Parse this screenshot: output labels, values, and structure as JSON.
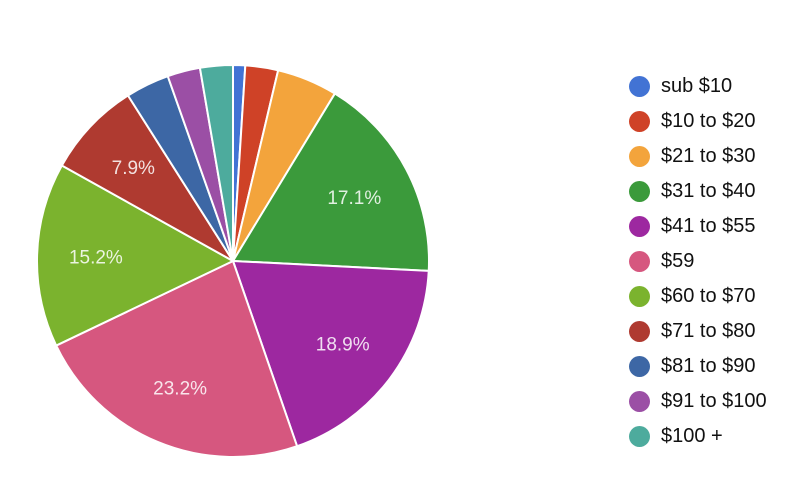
{
  "chart_data": {
    "type": "pie",
    "title": "",
    "legend_position": "right",
    "start_angle_deg": 0,
    "direction": "clockwise",
    "slice_border_color": "#ffffff",
    "slice_label_color": "rgba(255,255,255,0.85)",
    "legend_text_color": "#111111",
    "background_color": "#ffffff",
    "slices": [
      {
        "label": "sub $10",
        "value": 1.0,
        "color": "#4273d4",
        "display_label": ""
      },
      {
        "label": "$10 to $20",
        "value": 2.7,
        "color": "#cf4227",
        "display_label": ""
      },
      {
        "label": "$21 to $30",
        "value": 5.0,
        "color": "#f3a43c",
        "display_label": ""
      },
      {
        "label": "$31 to $40",
        "value": 17.1,
        "color": "#3b9a3b",
        "display_label": "17.1%"
      },
      {
        "label": "$41 to $55",
        "value": 18.9,
        "color": "#9d28a0",
        "display_label": "18.9%"
      },
      {
        "label": "$59",
        "value": 23.2,
        "color": "#d6577f",
        "display_label": "23.2%"
      },
      {
        "label": "$60 to $70",
        "value": 15.2,
        "color": "#7bb32e",
        "display_label": "15.2%"
      },
      {
        "label": "$71 to $80",
        "value": 7.9,
        "color": "#af3a30",
        "display_label": "7.9%"
      },
      {
        "label": "$81 to $90",
        "value": 3.6,
        "color": "#3d67a5",
        "display_label": ""
      },
      {
        "label": "$91 to $100",
        "value": 2.7,
        "color": "#9b4fa5",
        "display_label": ""
      },
      {
        "label": "$100 +",
        "value": 2.7,
        "color": "#4dab9d",
        "display_label": ""
      }
    ]
  }
}
